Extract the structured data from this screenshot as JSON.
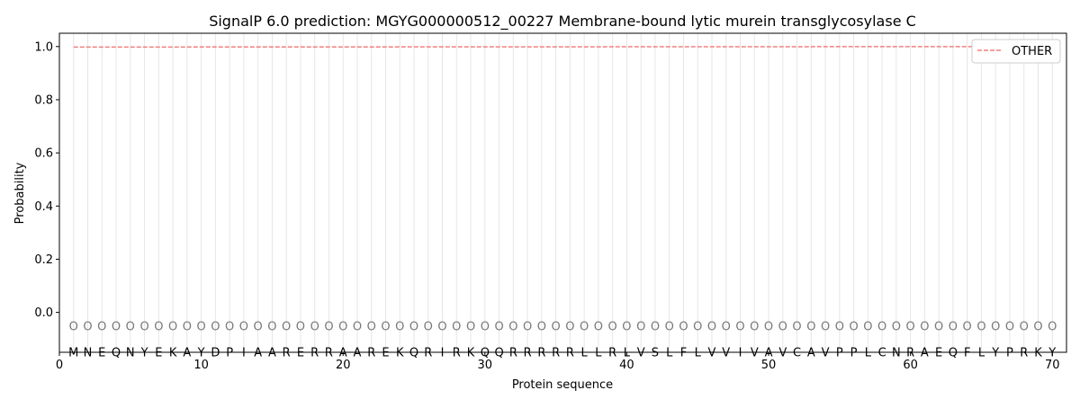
{
  "chart_data": {
    "type": "line",
    "title": "SignalP 6.0 prediction: MGYG000000512_00227 Membrane-bound lytic murein transglycosylase C",
    "xlabel": "Protein sequence",
    "ylabel": "Probability",
    "xlim": [
      0,
      71
    ],
    "ylim": [
      -0.15,
      1.05
    ],
    "xticks": [
      0,
      10,
      20,
      30,
      40,
      50,
      60,
      70
    ],
    "yticks": [
      0.0,
      0.2,
      0.4,
      0.6,
      0.8,
      1.0
    ],
    "xtick_labels": [
      "0",
      "10",
      "20",
      "30",
      "40",
      "50",
      "60",
      "70"
    ],
    "ytick_labels": [
      "0.0",
      "0.2",
      "0.4",
      "0.6",
      "0.8",
      "1.0"
    ],
    "grid": "vertical lines at each residue",
    "legend_placement": "top-right",
    "sequence": "MNEQNYEKAYDPIAARERRAAREKQRIRKQQRRRRRLLRLVSLFLVVIVAVCAVPPLCNRAEQFLYPRKY",
    "label_row_value": -0.05,
    "label_row_text": "O",
    "series": [
      {
        "name": "OTHER",
        "color": "#f08080",
        "style": "dashed",
        "x_start": 1,
        "x_end": 70,
        "y_start": 0.998,
        "y_end": 1.0
      }
    ]
  }
}
